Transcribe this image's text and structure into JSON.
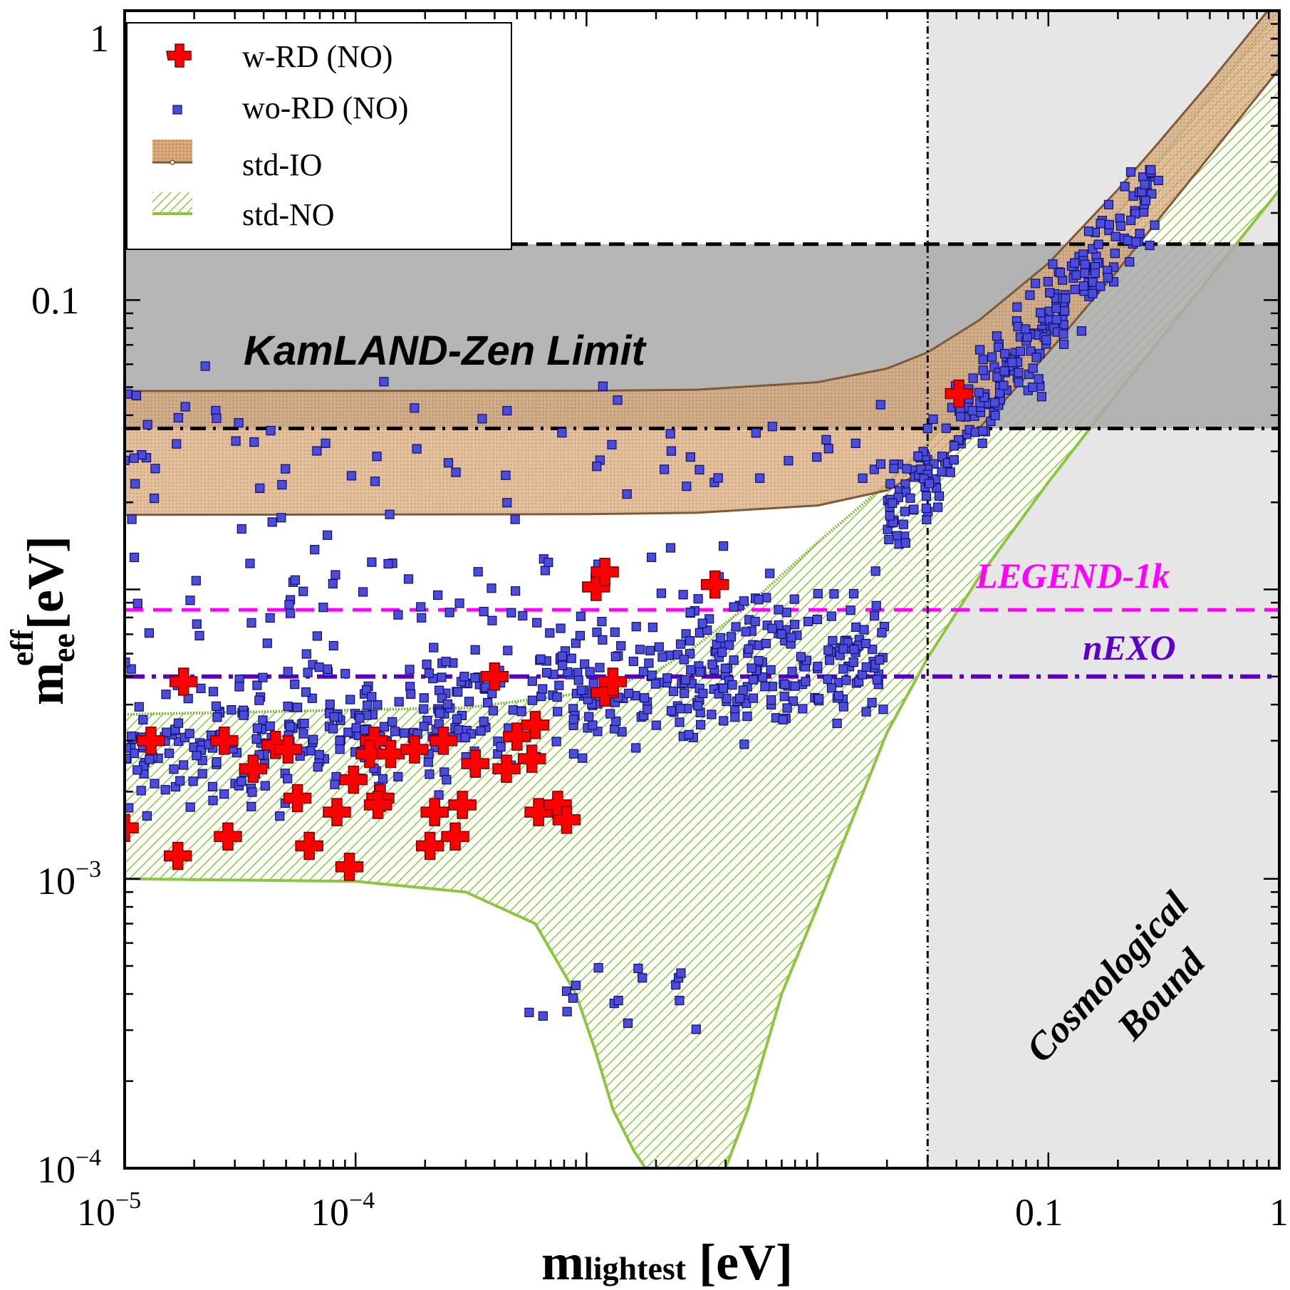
{
  "chart_data": {
    "type": "scatter",
    "x_axis": {
      "scale": "log",
      "range": [
        1e-05,
        1
      ],
      "ticks": [
        "10^-5",
        "10^-4",
        "0.1",
        "1"
      ]
    },
    "y_axis": {
      "scale": "log",
      "range": [
        0.0001,
        1
      ],
      "ticks": [
        "10^-4",
        "10^-3",
        "0.1",
        "1"
      ]
    },
    "xlabel": {
      "main": "m",
      "sub": "lightest",
      "unit": "[eV]"
    },
    "ylabel": {
      "main": "m",
      "sub": "ee",
      "sup": "eff",
      "unit": "[eV]"
    },
    "legend": {
      "placement": "top-left",
      "entries": [
        "w-RD (NO)",
        "wo-RD (NO)",
        "std-IO",
        "std-NO"
      ]
    },
    "annotations": {
      "kamland": "KamLAND-Zen Limit",
      "legend1k": "LEGEND-1k",
      "nexo": "nEXO",
      "cosmo_line1": "Cosmological",
      "cosmo_line2": "Bound"
    },
    "bands": {
      "kamland_zen": {
        "y_range": [
          0.036,
          0.156
        ],
        "color": "#a9a9a9"
      },
      "cosmological_bound": {
        "x_min": 0.03,
        "color": "#e6e6e6"
      },
      "std_IO": {
        "color": "#d2a679",
        "dark_color": "#7f5a38",
        "x": [
          1e-05,
          0.001,
          0.003,
          0.01,
          0.02,
          0.03,
          0.05,
          0.1,
          0.2,
          0.3,
          0.5,
          1.0
        ],
        "lower": [
          0.0181,
          0.0182,
          0.0184,
          0.0195,
          0.022,
          0.026,
          0.036,
          0.066,
          0.127,
          0.19,
          0.315,
          0.63
        ],
        "upper": [
          0.0485,
          0.0486,
          0.049,
          0.052,
          0.058,
          0.066,
          0.085,
          0.134,
          0.241,
          0.35,
          0.565,
          1.12
        ]
      },
      "std_NO": {
        "color": "#8cc63f",
        "x_upper": [
          1e-05,
          0.0003,
          0.001,
          0.002,
          0.003,
          0.005,
          0.01,
          0.02,
          0.03,
          0.05,
          0.1,
          0.2,
          0.5,
          1.0
        ],
        "upper": [
          0.0037,
          0.0039,
          0.0044,
          0.0052,
          0.0064,
          0.0088,
          0.0145,
          0.0232,
          0.032,
          0.052,
          0.101,
          0.2,
          0.5,
          1.0
        ],
        "x_lower": [
          1e-05,
          0.0001,
          0.0003,
          0.0006,
          0.0009,
          0.0011,
          0.0013,
          0.0016,
          0.0018,
          0.002,
          0.003,
          0.004,
          0.005,
          0.007,
          0.01,
          0.02,
          0.03,
          0.05,
          0.1,
          0.2,
          0.5,
          1.0
        ],
        "lower": [
          0.001,
          0.00098,
          0.0009,
          0.0007,
          0.0004,
          0.00025,
          0.00016,
          0.000115,
          0.0001,
          0.0001,
          0.0001,
          0.0001,
          0.00016,
          0.0004,
          0.0008,
          0.0032,
          0.0058,
          0.011,
          0.0235,
          0.048,
          0.12,
          0.24
        ]
      }
    },
    "lines": {
      "kamland_upper": {
        "y": 0.156,
        "style": "dashed",
        "color": "#000000"
      },
      "kamland_lower": {
        "y": 0.036,
        "style": "dashdot",
        "color": "#000000"
      },
      "legend_1k": {
        "y": 0.0085,
        "style": "dashed",
        "color": "#ff00ff"
      },
      "nexo": {
        "y": 0.005,
        "style": "dashdot",
        "color": "#5b00c8"
      },
      "cosmological": {
        "x": 0.03,
        "style": "dashdot",
        "color": "#000000"
      }
    },
    "series": [
      {
        "name": "w-RD (NO)",
        "marker": "cross",
        "color": "#ff0000",
        "x": [
          1e-05,
          1.3e-05,
          1.8e-05,
          1.7e-05,
          2.8e-05,
          2.7e-05,
          3.6e-05,
          4.5e-05,
          5.1e-05,
          5.6e-05,
          6.3e-05,
          8.3e-05,
          9.4e-05,
          9.8e-05,
          0.00012,
          0.000115,
          0.000128,
          0.000142,
          0.000125,
          0.00018,
          0.00021,
          0.00022,
          0.00024,
          0.00027,
          0.00029,
          0.00033,
          0.0004,
          0.00045,
          0.0005,
          0.00058,
          0.0006,
          0.00062,
          0.00075,
          0.00082,
          0.0011,
          0.0012,
          0.0012,
          0.0013,
          0.0036,
          0.041
        ],
        "y": [
          0.0015,
          0.003,
          0.0048,
          0.0012,
          0.0014,
          0.003,
          0.0024,
          0.0029,
          0.0028,
          0.0019,
          0.0013,
          0.0017,
          0.0011,
          0.0022,
          0.003,
          0.0027,
          0.0019,
          0.0027,
          0.0018,
          0.0028,
          0.0013,
          0.0017,
          0.003,
          0.0014,
          0.0018,
          0.0025,
          0.005,
          0.0024,
          0.0031,
          0.0026,
          0.0034,
          0.0017,
          0.0018,
          0.0016,
          0.0102,
          0.0115,
          0.0044,
          0.0048,
          0.0104,
          0.0475
        ]
      },
      {
        "name": "wo-RD (NO)",
        "marker": "square",
        "color": "#4b4bdc",
        "count": 1000
      }
    ]
  }
}
